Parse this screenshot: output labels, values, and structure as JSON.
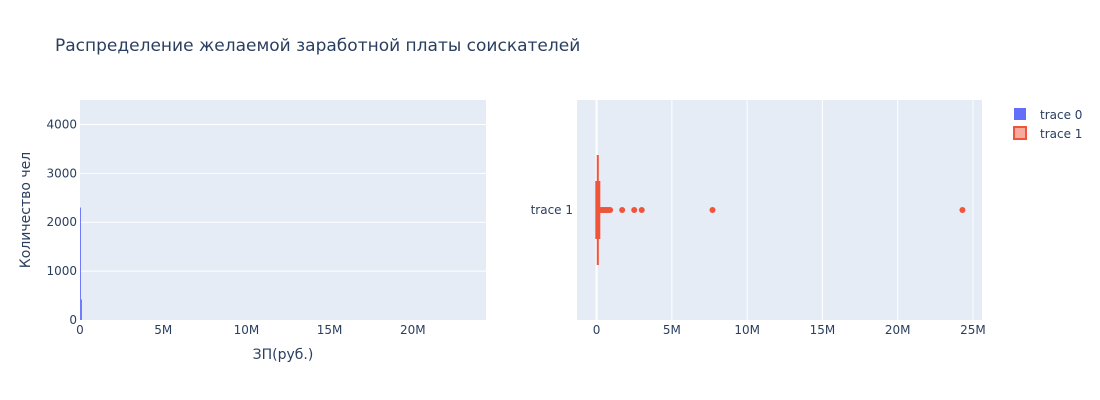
{
  "chart_data": [
    {
      "type": "histogram",
      "title": "Распределение желаемой заработной платы соискателей",
      "trace": "trace 0",
      "xlabel": "ЗП(руб.)",
      "ylabel": "Количество чел",
      "xlim": [
        0,
        24400000
      ],
      "ylim": [
        0,
        4500
      ],
      "xticks": [
        0,
        5000000,
        10000000,
        15000000,
        20000000
      ],
      "xtick_labels": [
        "0",
        "5M",
        "10M",
        "15M",
        "20M"
      ],
      "yticks": [
        0,
        1000,
        2000,
        3000,
        4000
      ],
      "ytick_labels": [
        "0",
        "1000",
        "2000",
        "3000",
        "4000"
      ],
      "bins": [
        {
          "x": 0,
          "count": 2300
        },
        {
          "x": 30000,
          "count": 420
        }
      ],
      "color": "#636efa"
    },
    {
      "type": "box",
      "trace": "trace 1",
      "category": "trace 1",
      "xlim": [
        -1300000,
        25600000
      ],
      "xticks": [
        0,
        5000000,
        10000000,
        15000000,
        20000000,
        25000000
      ],
      "xtick_labels": [
        "0",
        "5M",
        "10M",
        "15M",
        "20M",
        "25M"
      ],
      "box": {
        "min": 0,
        "q1": 50000,
        "median": 80000,
        "q3": 120000,
        "max": 220000
      },
      "outliers": [
        300000,
        400000,
        500000,
        600000,
        700000,
        800000,
        900000,
        1700000,
        2500000,
        3000000,
        7700000,
        24300000
      ],
      "color": "#ef553b"
    }
  ],
  "legend": {
    "items": [
      {
        "label": "trace 0",
        "color": "#636efa"
      },
      {
        "label": "trace 1",
        "color": "#ef553b"
      }
    ]
  }
}
